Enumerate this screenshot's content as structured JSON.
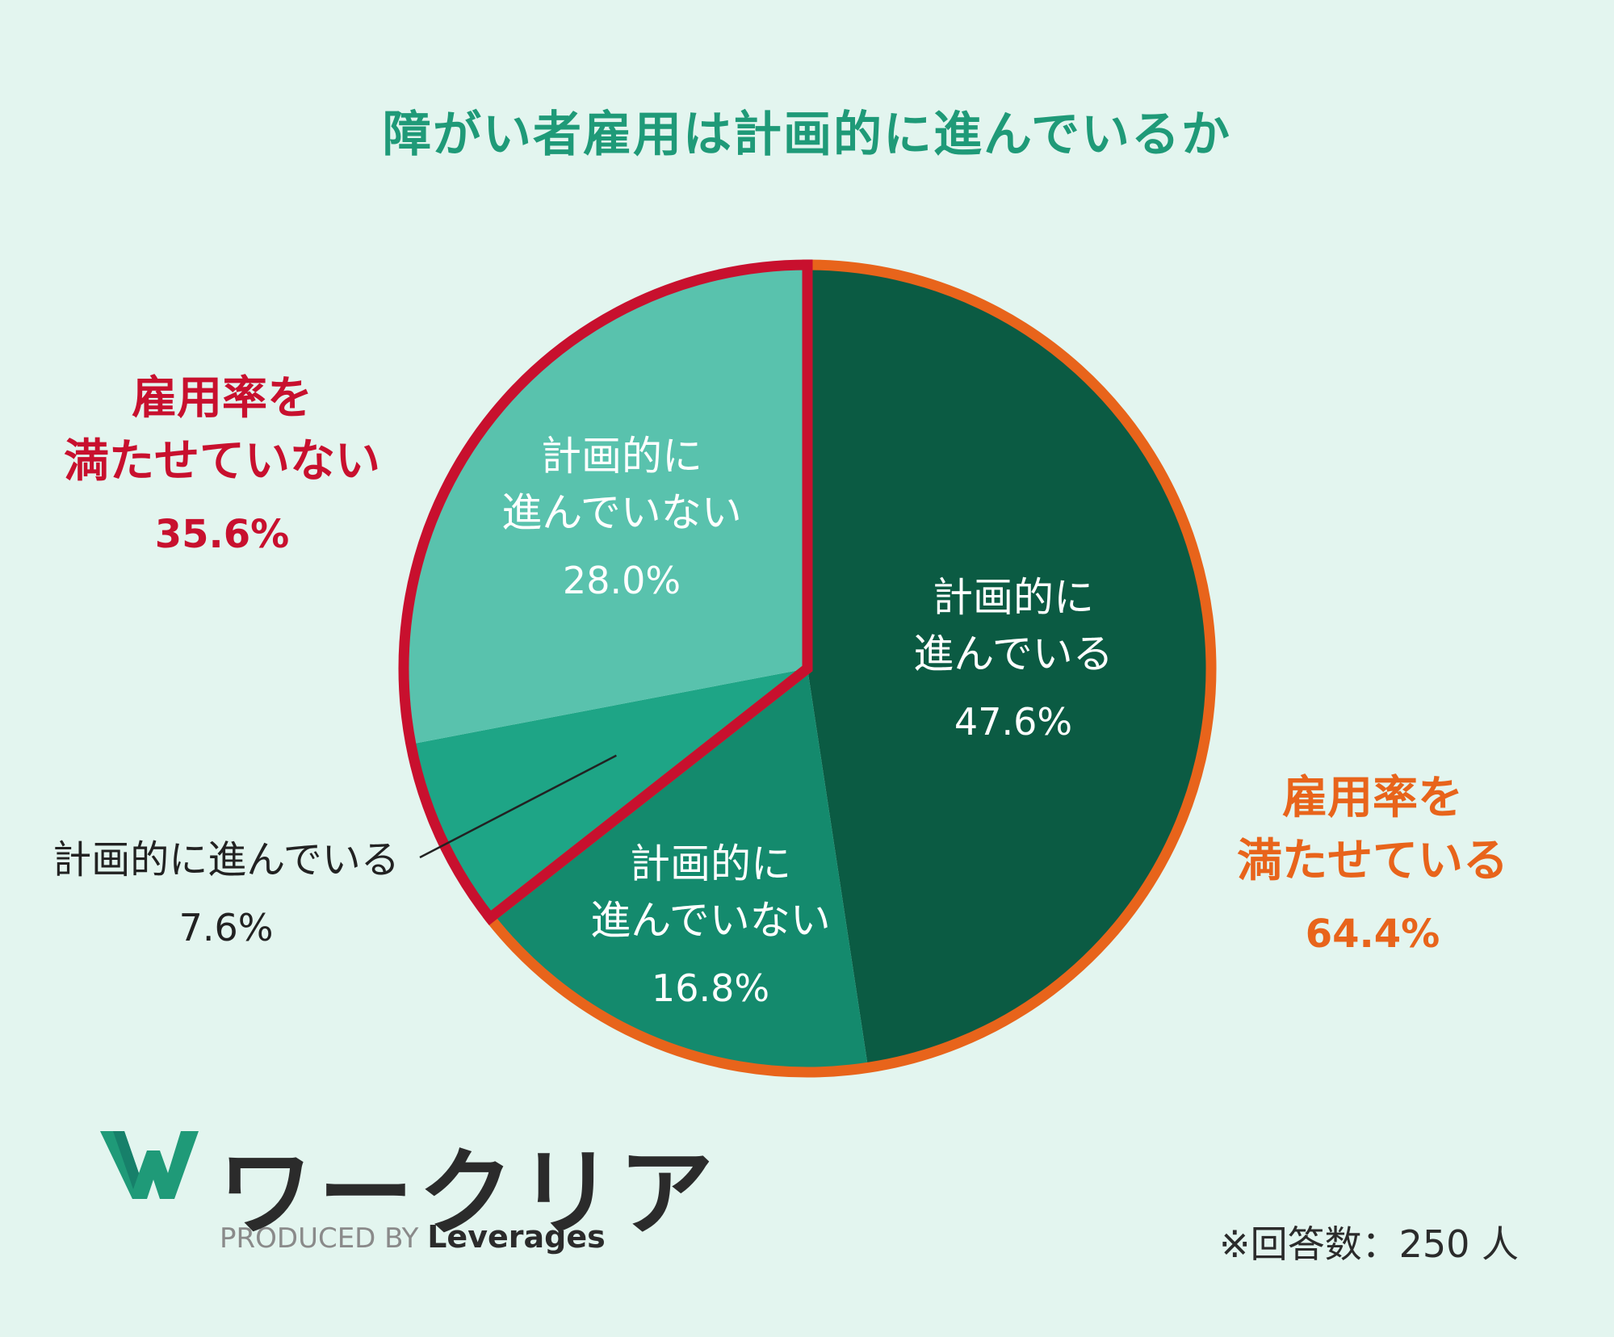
{
  "chart_data": {
    "type": "pie",
    "title": "障がい者雇用は計画的に進んでいるか",
    "slices": [
      {
        "group": "雇用率を満たせている",
        "label": "計画的に進んでいる",
        "value": 47.6,
        "display": "47.6%",
        "color": "#0b5b43"
      },
      {
        "group": "雇用率を満たせている",
        "label": "計画的に進んでいない",
        "value": 16.8,
        "display": "16.8%",
        "color": "#148a6d"
      },
      {
        "group": "雇用率を満たせていない",
        "label": "計画的に進んでいる",
        "value": 7.6,
        "display": "7.6%",
        "color": "#1ea586"
      },
      {
        "group": "雇用率を満たせていない",
        "label": "計画的に進んでいない",
        "value": 28.0,
        "display": "28.0%",
        "color": "#59c2ad"
      }
    ],
    "groups": [
      {
        "label_line1": "雇用率を",
        "label_line2": "満たせている",
        "value": 64.4,
        "display": "64.4%",
        "color": "#e8641b"
      },
      {
        "label_line1": "雇用率を",
        "label_line2": "満たせていない",
        "value": 35.6,
        "display": "35.6%",
        "color": "#c8102e"
      }
    ],
    "slice_labels": {
      "s0": {
        "line1": "計画的に",
        "line2": "進んでいる",
        "pct": "47.6%"
      },
      "s1": {
        "line1": "計画的に",
        "line2": "進んでいない",
        "pct": "16.8%"
      },
      "s2": {
        "line1": "計画的に進んでいる",
        "pct": "7.6%"
      },
      "s3": {
        "line1": "計画的に",
        "line2": "進んでいない",
        "pct": "28.0%"
      }
    }
  },
  "footer": {
    "logo_text": "ワークリア",
    "produced_by": "PRODUCED BY",
    "brand": "Leverages",
    "note": "※回答数：250 人"
  },
  "colors": {
    "background": "#e3f5ef",
    "title": "#1f9a78",
    "logo_green": "#1f9a78"
  }
}
